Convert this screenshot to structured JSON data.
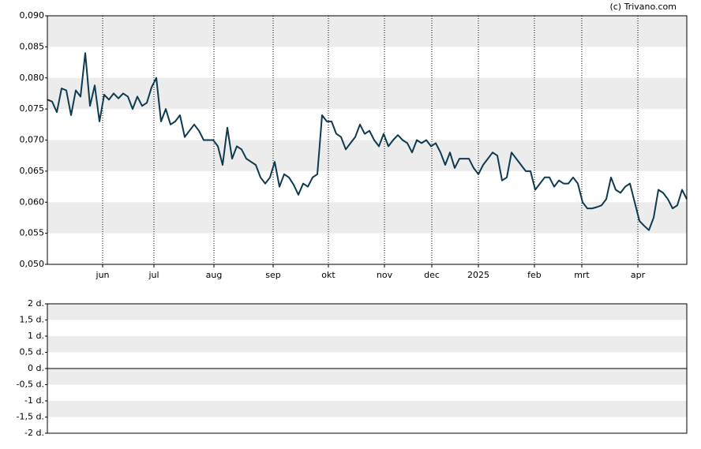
{
  "credit": "(c) Trivano.com",
  "chart_data": [
    {
      "type": "line",
      "color": "#0d3a50",
      "grid": true,
      "values": [
        0.0765,
        0.0762,
        0.0745,
        0.0783,
        0.078,
        0.074,
        0.078,
        0.077,
        0.084,
        0.0755,
        0.0788,
        0.073,
        0.0773,
        0.0765,
        0.0775,
        0.0767,
        0.0775,
        0.077,
        0.075,
        0.077,
        0.0755,
        0.076,
        0.0785,
        0.08,
        0.073,
        0.075,
        0.0725,
        0.073,
        0.074,
        0.0705,
        0.0715,
        0.0725,
        0.0715,
        0.07,
        0.07,
        0.07,
        0.069,
        0.066,
        0.072,
        0.067,
        0.069,
        0.0685,
        0.067,
        0.0665,
        0.066,
        0.064,
        0.063,
        0.064,
        0.0665,
        0.0625,
        0.0645,
        0.064,
        0.0628,
        0.0612,
        0.063,
        0.0625,
        0.064,
        0.0645,
        0.074,
        0.073,
        0.073,
        0.071,
        0.0705,
        0.0685,
        0.0695,
        0.0705,
        0.0725,
        0.071,
        0.0715,
        0.07,
        0.069,
        0.071,
        0.069,
        0.07,
        0.0708,
        0.07,
        0.0695,
        0.068,
        0.07,
        0.0695,
        0.07,
        0.069,
        0.0695,
        0.068,
        0.066,
        0.068,
        0.0655,
        0.067,
        0.067,
        0.067,
        0.0655,
        0.0645,
        0.066,
        0.067,
        0.068,
        0.0675,
        0.0635,
        0.064,
        0.068,
        0.067,
        0.066,
        0.065,
        0.065,
        0.062,
        0.063,
        0.064,
        0.064,
        0.0625,
        0.0635,
        0.063,
        0.063,
        0.064,
        0.063,
        0.06,
        0.059,
        0.059,
        0.0592,
        0.0595,
        0.0605,
        0.064,
        0.062,
        0.0615,
        0.0625,
        0.063,
        0.06,
        0.057,
        0.0562,
        0.0555,
        0.0575,
        0.062,
        0.0615,
        0.0605,
        0.059,
        0.0595,
        0.062,
        0.0605
      ],
      "xlim": [
        0,
        135
      ],
      "xticks": [
        {
          "value": 11.67,
          "label": "jun"
        },
        {
          "value": 22.5,
          "label": "jul"
        },
        {
          "value": 35.17,
          "label": "aug"
        },
        {
          "value": 47.67,
          "label": "sep"
        },
        {
          "value": 59.33,
          "label": "okt"
        },
        {
          "value": 71.17,
          "label": "nov"
        },
        {
          "value": 81.17,
          "label": "dec"
        },
        {
          "value": 91,
          "label": "2025"
        },
        {
          "value": 102.83,
          "label": "feb"
        },
        {
          "value": 112.83,
          "label": "mrt"
        },
        {
          "value": 124.67,
          "label": "apr"
        }
      ],
      "ylim": [
        0.05,
        0.09
      ],
      "yticks": [
        {
          "value": 0.05,
          "label": "0,050"
        },
        {
          "value": 0.055,
          "label": "0,055"
        },
        {
          "value": 0.06,
          "label": "0,060"
        },
        {
          "value": 0.065,
          "label": "0,065"
        },
        {
          "value": 0.07,
          "label": "0,070"
        },
        {
          "value": 0.075,
          "label": "0,075"
        },
        {
          "value": 0.08,
          "label": "0,080"
        },
        {
          "value": 0.085,
          "label": "0,085"
        },
        {
          "value": 0.09,
          "label": "0,090"
        }
      ]
    },
    {
      "type": "bar",
      "ylim": [
        -2,
        2
      ],
      "yticks": [
        {
          "value": -2,
          "label": "-2 d."
        },
        {
          "value": -1.5,
          "label": "-1,5 d."
        },
        {
          "value": -1,
          "label": "-1 d."
        },
        {
          "value": -0.5,
          "label": "-0,5 d."
        },
        {
          "value": 0,
          "label": "0 d."
        },
        {
          "value": 0.5,
          "label": "0,5 d."
        },
        {
          "value": 1,
          "label": "1 d."
        },
        {
          "value": 1.5,
          "label": "1,5 d."
        },
        {
          "value": 2,
          "label": "2 d."
        }
      ]
    }
  ]
}
